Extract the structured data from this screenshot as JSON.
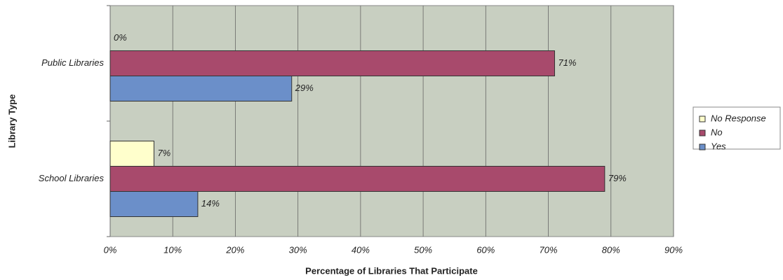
{
  "chart_data": {
    "type": "barh",
    "xlabel": "Percentage of Libraries That Participate",
    "ylabel": "Library Type",
    "categories": [
      "Public Libraries",
      "School Libraries"
    ],
    "series": [
      {
        "name": "No Response",
        "color": "#ffffcc",
        "values": [
          0,
          7
        ],
        "value_labels": [
          "0%",
          "7%"
        ]
      },
      {
        "name": "No",
        "color": "#a84a6c",
        "values": [
          71,
          79
        ],
        "value_labels": [
          "71%",
          "79%"
        ]
      },
      {
        "name": "Yes",
        "color": "#6b8fc9",
        "values": [
          29,
          14
        ],
        "value_labels": [
          "29%",
          "14%"
        ]
      }
    ],
    "xlim": [
      0,
      90
    ],
    "xticks": [
      {
        "value": 0,
        "label": "0%"
      },
      {
        "value": 10,
        "label": "10%"
      },
      {
        "value": 20,
        "label": "20%"
      },
      {
        "value": 30,
        "label": "30%"
      },
      {
        "value": 40,
        "label": "40%"
      },
      {
        "value": 50,
        "label": "50%"
      },
      {
        "value": 60,
        "label": "60%"
      },
      {
        "value": 70,
        "label": "70%"
      },
      {
        "value": 80,
        "label": "80%"
      },
      {
        "value": 90,
        "label": "90%"
      }
    ],
    "grid": true,
    "legend": "right"
  }
}
